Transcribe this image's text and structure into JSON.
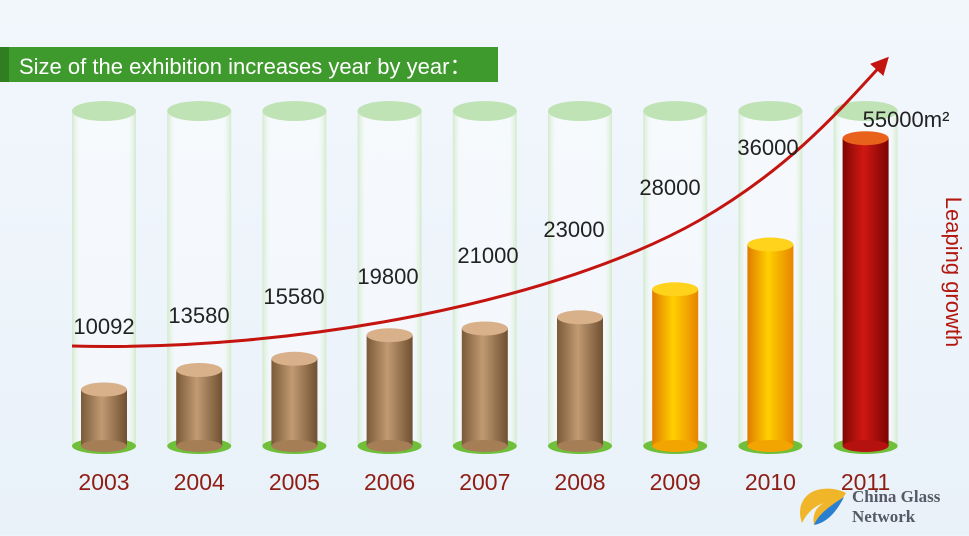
{
  "title": "Size of the exhibition increases year by year：",
  "annotation": "Leaping growth",
  "unit_label": "55000m²",
  "watermark": {
    "line1": "China Glass",
    "line2": "Network"
  },
  "chart_data": {
    "type": "bar",
    "categories": [
      "2003",
      "2004",
      "2005",
      "2006",
      "2007",
      "2008",
      "2009",
      "2010",
      "2011"
    ],
    "values": [
      10092,
      13580,
      15580,
      19800,
      21000,
      23000,
      28000,
      36000,
      55000
    ],
    "data_labels": [
      "10092",
      "13580",
      "15580",
      "19800",
      "21000",
      "23000",
      "28000",
      "36000",
      "55000m²"
    ],
    "bar_colors": [
      "#a57e55",
      "#a57e55",
      "#a57e55",
      "#a57e55",
      "#a57e55",
      "#a57e55",
      "#f2a400",
      "#f2a400",
      "#b5110f"
    ],
    "cap_colors": [
      "#d8b08a",
      "#d8b08a",
      "#d8b08a",
      "#d8b08a",
      "#d8b08a",
      "#d8b08a",
      "#ffd21c",
      "#ffd21c",
      "#e8621c"
    ],
    "title": "Size of the exhibition increases year by year：",
    "xlabel": "",
    "ylabel": "",
    "ylim": [
      0,
      60000
    ],
    "grid": false,
    "legend": "none",
    "trend_arrow": true
  }
}
